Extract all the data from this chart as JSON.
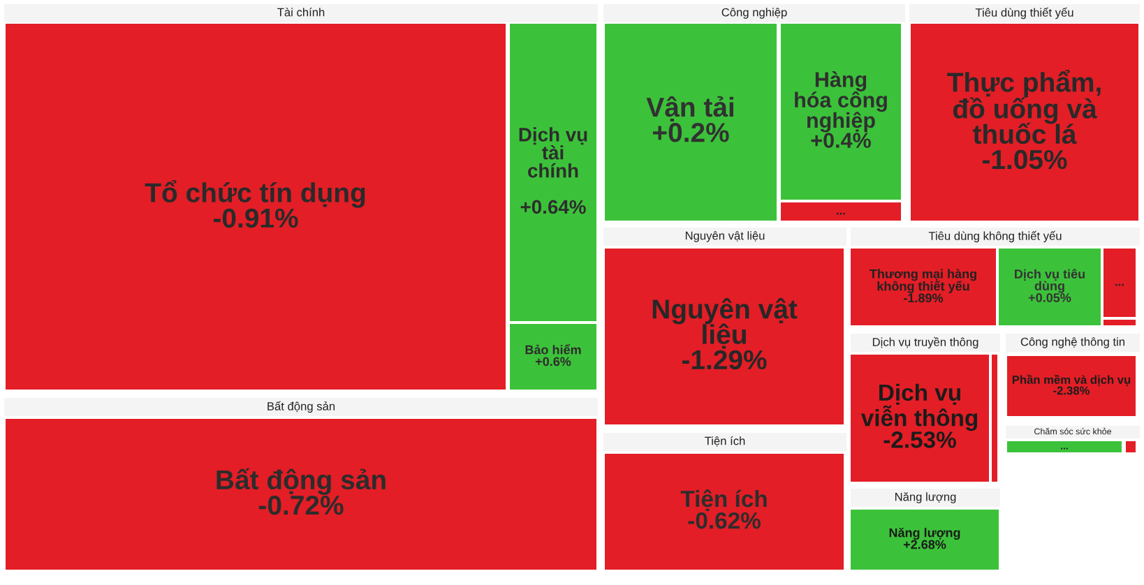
{
  "chart_data": {
    "type": "other",
    "categories": [
      "Tổ chức tín dụng",
      "Dịch vụ\ntài\nchính",
      "Bảo hiểm",
      "Bất động sản",
      "Vận tải",
      "Hàng\nhóa công\nnghiệp",
      "...",
      "Thực phẩm,\nđồ uống và\nthuốc lá",
      "Nguyên vật\nliệu",
      "Thương mại hàng\nkhông thiết yếu",
      "Dịch vụ tiêu\ndùng",
      "...",
      null,
      "Dịch vụ\nviễn thông",
      null,
      "Phần mềm và dịch vụ",
      "...",
      null,
      "Tiện ích",
      "Năng lượng"
    ],
    "values": [
      -0.91,
      0.64,
      0.6,
      -0.72,
      0.2,
      0.4,
      null,
      -1.05,
      -1.29,
      -1.89,
      0.05,
      null,
      null,
      -2.53,
      null,
      -2.38,
      null,
      null,
      -0.62,
      2.68
    ],
    "value_labels": [
      "-0.91%",
      "\n+0.64%",
      "+0.6%",
      "-0.72%",
      "+0.2%",
      "+0.4%",
      null,
      "-1.05%",
      "-1.29%",
      "-1.89%",
      "+0.05%",
      null,
      null,
      "-2.53%",
      null,
      "-2.38%",
      null,
      null,
      "-0.62%",
      "+2.68%"
    ],
    "colors": [
      "#e31e26",
      "#3cc23a",
      "#3cc23a",
      "#e31e26",
      "#3cc23a",
      "#3cc23a",
      "#e31e26",
      "#e31e26",
      "#e31e26",
      "#e31e26",
      "#3cc23a",
      "#e31e26",
      "#e31e26",
      "#e31e26",
      "#e31e26",
      "#e31e26",
      "#3cc23a",
      "#e31e26",
      "#e31e26",
      "#3cc23a"
    ],
    "annotations": [
      "Tài chính",
      "Bất động sản",
      "Công nghiệp",
      "Tiêu dùng thiết yếu",
      "Nguyên vật liệu",
      "Tiêu dùng không thiết yếu",
      "Tiện ích",
      "Dịch vụ truyền thông",
      "Công nghệ thông tin",
      "Chăm sóc sức khỏe",
      "Năng lượng"
    ]
  }
}
